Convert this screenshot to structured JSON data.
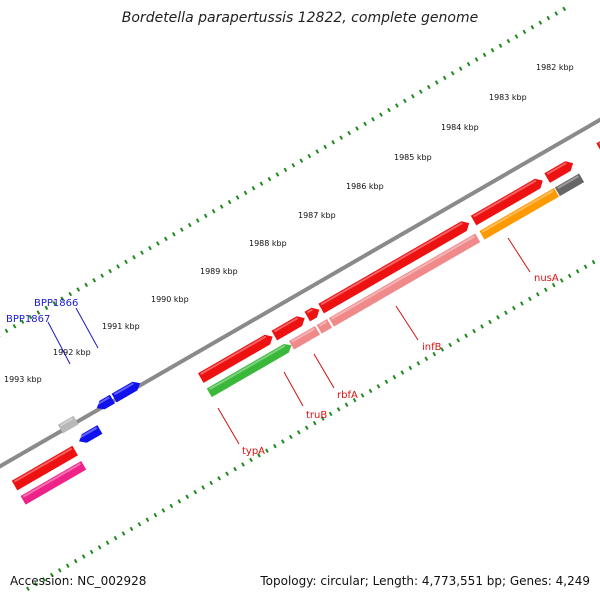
{
  "header": {
    "title": "Bordetella parapertussis 12822, complete genome"
  },
  "footer": {
    "accession": "Accession: NC_002928",
    "summary": "Topology: circular; Length: 4,773,551 bp; Genes: 4,249"
  },
  "chart_data": {
    "type": "genome-map",
    "scale_ticks": [
      "1982 kbp",
      "1983 kbp",
      "1984 kbp",
      "1985 kbp",
      "1986 kbp",
      "1987 kbp",
      "1988 kbp",
      "1989 kbp",
      "1990 kbp",
      "1991 kbp",
      "1992 kbp",
      "1993 kbp"
    ],
    "gene_labels": [
      {
        "name": "nusA",
        "color": "#d11111"
      },
      {
        "name": "infB",
        "color": "#d11111"
      },
      {
        "name": "rbfA",
        "color": "#d11111"
      },
      {
        "name": "truB",
        "color": "#d11111"
      },
      {
        "name": "typA",
        "color": "#d11111"
      },
      {
        "name": "BPP1866",
        "color": "#1a1acc"
      },
      {
        "name": "BPP1867",
        "color": "#1a1acc"
      }
    ],
    "colors": {
      "cds_red": "#ee1111",
      "cds_pink": "#f08a8a",
      "cds_green": "#3ab83a",
      "cds_orange": "#ff9900",
      "cds_blue": "#1111ee",
      "cds_gray": "#b8b8b8",
      "cds_dark": "#666666",
      "cds_magenta": "#ee2288",
      "tick_green": "#1f8a1f",
      "backbone": "#8a8a8a"
    }
  }
}
